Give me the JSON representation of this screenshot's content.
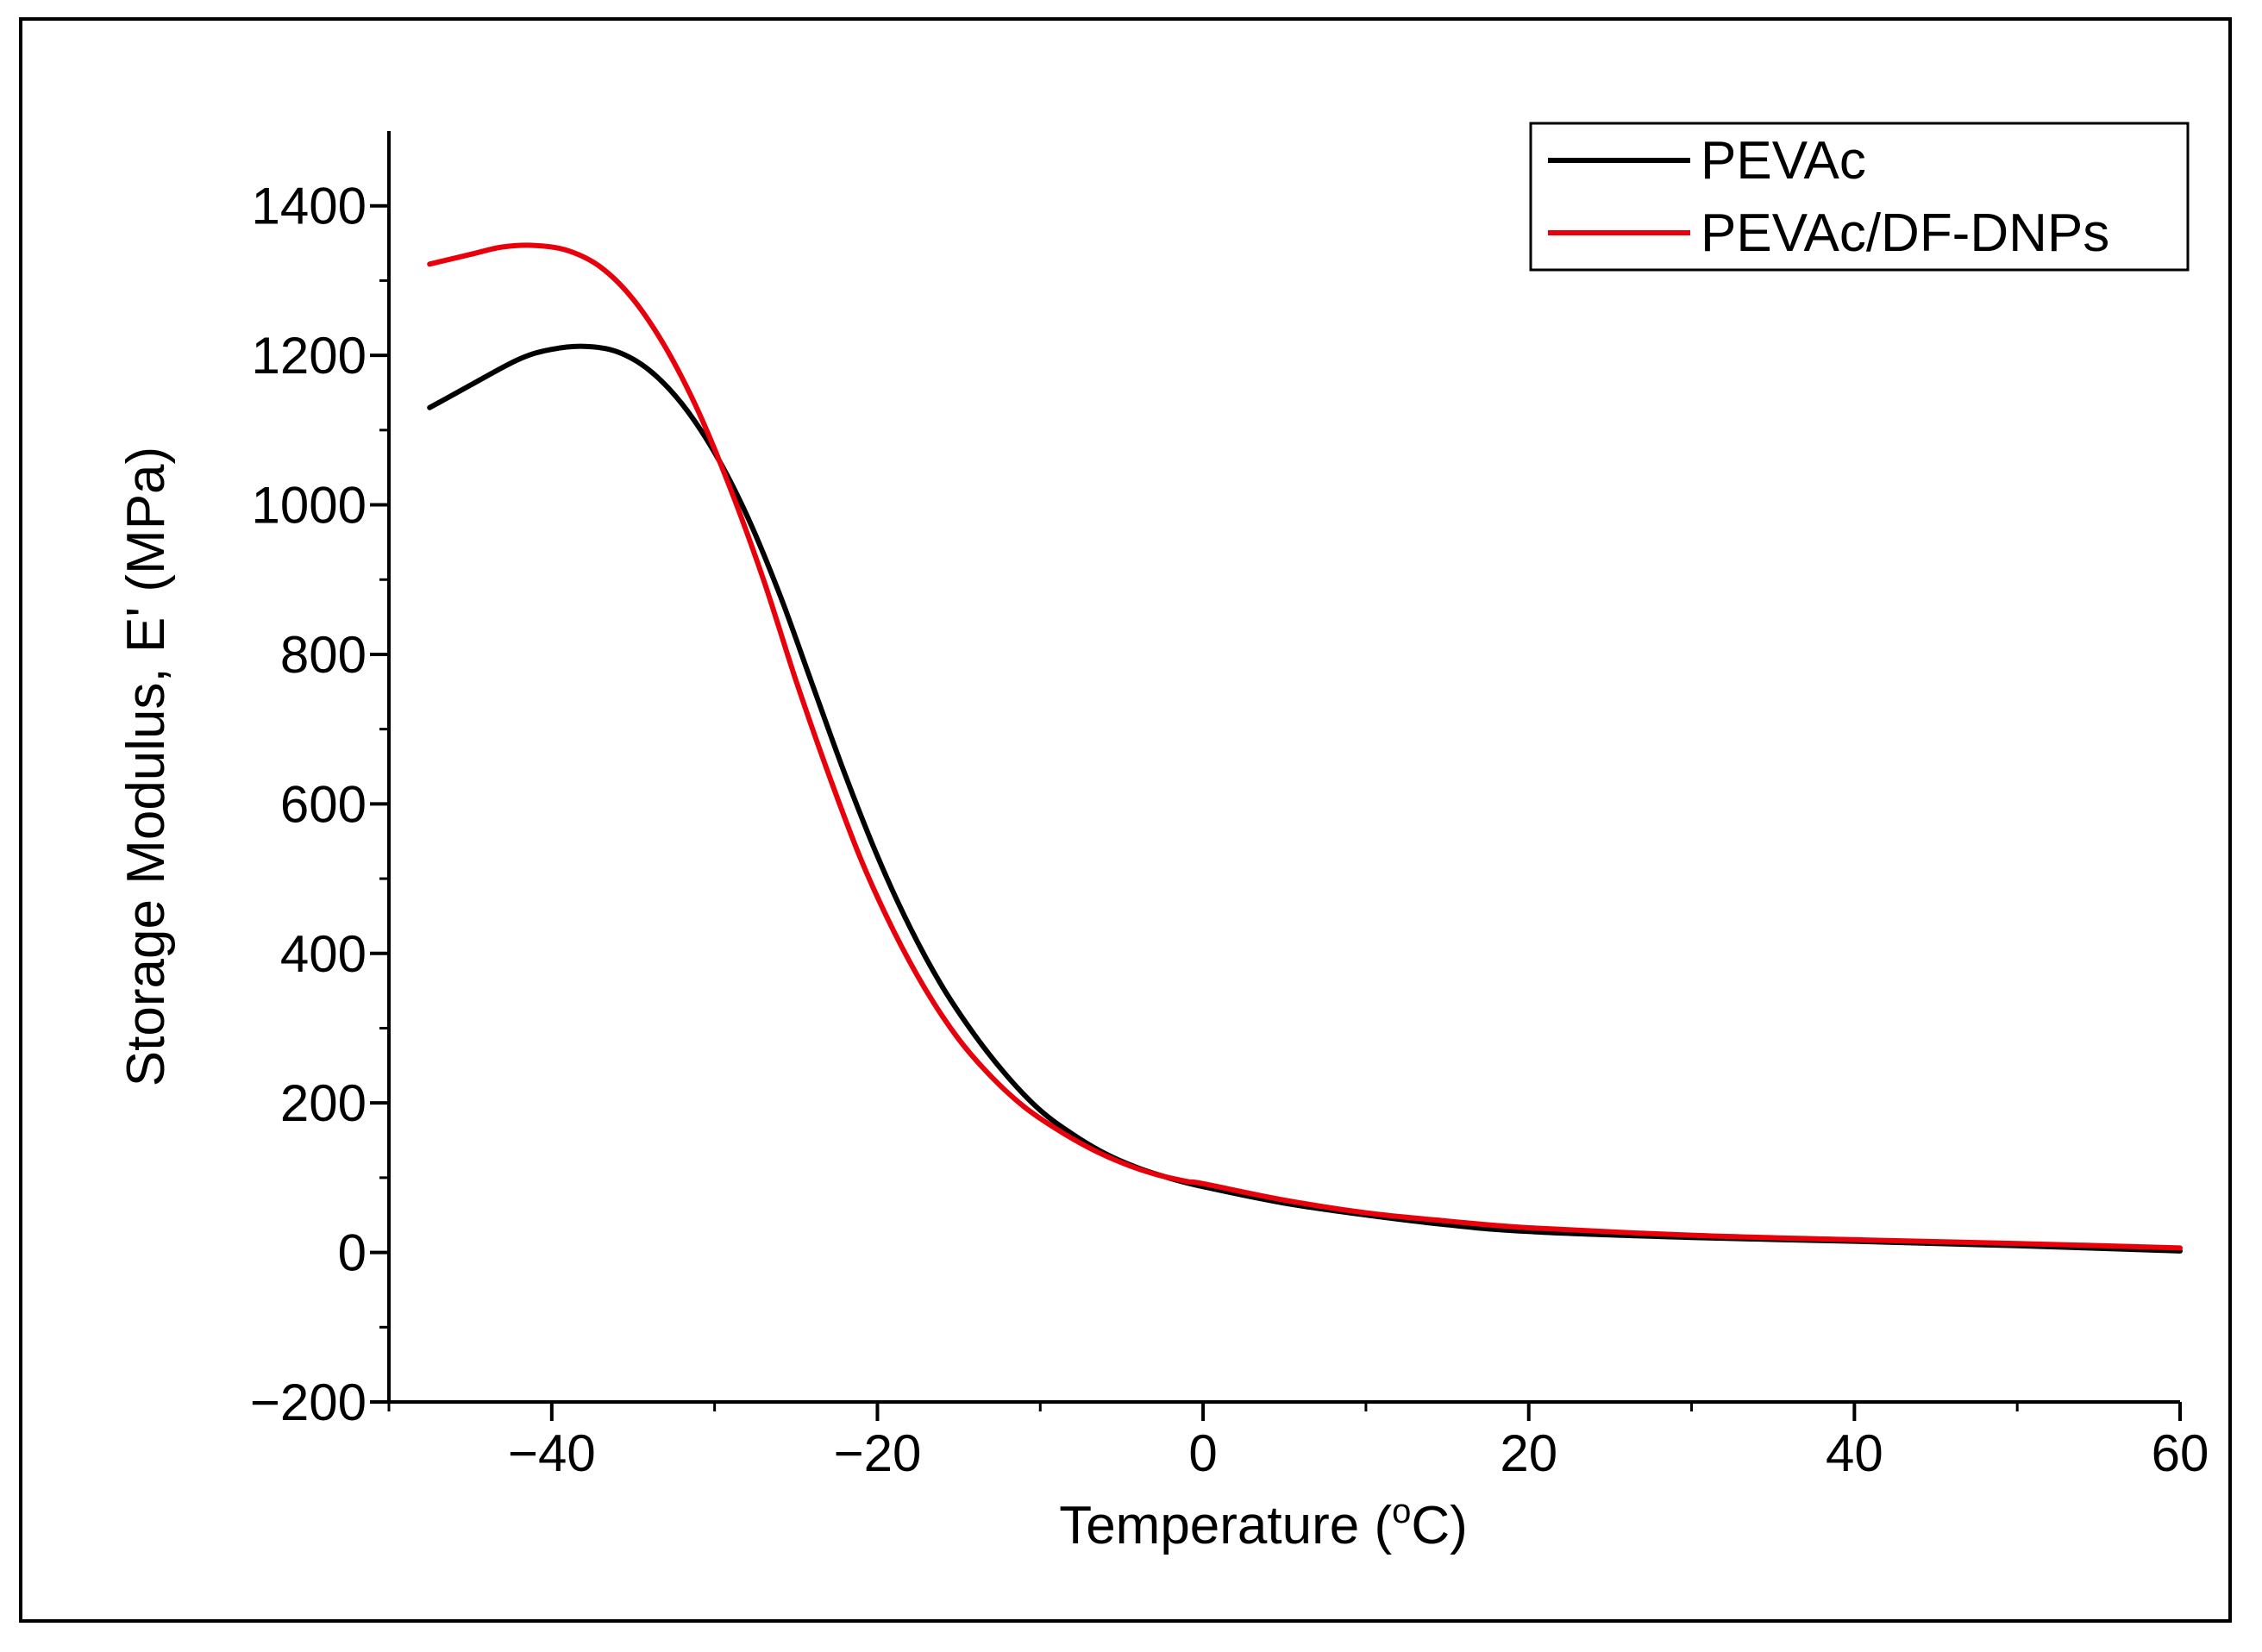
{
  "chart_data": {
    "type": "line",
    "title": "",
    "xlabel": "Temperature (",
    "xlabel_unit_sup": "o",
    "xlabel_unit": "C)",
    "ylabel": "Storage Modulus, E' (MPa)",
    "xlim": [
      -50,
      60
    ],
    "ylim": [
      -200,
      1500
    ],
    "xticks": [
      -40,
      -20,
      0,
      20,
      40,
      60
    ],
    "xtick_labels": [
      "−40",
      "−20",
      "0",
      "20",
      "40",
      "60"
    ],
    "yticks": [
      -200,
      0,
      200,
      400,
      600,
      800,
      1000,
      1200,
      1400
    ],
    "ytick_labels": [
      "−200",
      "0",
      "200",
      "400",
      "600",
      "800",
      "1000",
      "1200",
      "1400"
    ],
    "legend_position": "top-right",
    "series": [
      {
        "name": "PEVAc",
        "color": "#000000",
        "x": [
          -47.5,
          -45,
          -42,
          -40,
          -38,
          -36,
          -34,
          -32,
          -30,
          -28,
          -26,
          -24,
          -22,
          -20,
          -18,
          -16,
          -14,
          -12,
          -10,
          -8,
          -6,
          -4,
          -2,
          0,
          5,
          10,
          15,
          20,
          30,
          40,
          50,
          60
        ],
        "y": [
          1130,
          1160,
          1195,
          1208,
          1212,
          1205,
          1180,
          1135,
          1070,
          985,
          880,
          760,
          640,
          530,
          435,
          355,
          290,
          235,
          190,
          158,
          132,
          113,
          99,
          88,
          66,
          50,
          37,
          28,
          20,
          15,
          9,
          2
        ]
      },
      {
        "name": "PEVAc/DF-DNPs",
        "color": "#e8000b",
        "x": [
          -47.5,
          -45,
          -43,
          -41,
          -39,
          -37,
          -35,
          -33,
          -31,
          -29,
          -27,
          -25,
          -23,
          -21,
          -19,
          -17,
          -15,
          -13,
          -11,
          -9,
          -7,
          -5,
          -3,
          -1,
          0,
          5,
          10,
          15,
          20,
          30,
          40,
          50,
          60
        ],
        "y": [
          1322,
          1335,
          1345,
          1347,
          1340,
          1318,
          1275,
          1210,
          1125,
          1020,
          900,
          765,
          640,
          525,
          430,
          350,
          285,
          235,
          195,
          165,
          140,
          120,
          105,
          95,
          92,
          70,
          53,
          42,
          33,
          23,
          17,
          12,
          6
        ]
      }
    ]
  }
}
